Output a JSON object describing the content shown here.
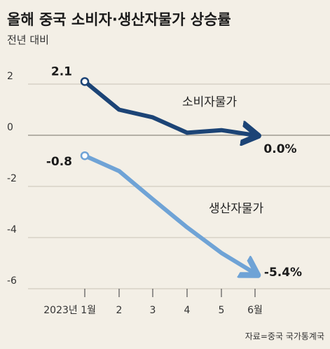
{
  "chart_data": {
    "type": "line",
    "title": "올해 중국 소비자·생산자물가 상승률",
    "subtitle": "전년 대비",
    "source": "자료=중국 국가통계국",
    "x": [
      "2023년 1월",
      "2",
      "3",
      "4",
      "5",
      "6월"
    ],
    "yticks": [
      2,
      0,
      -2,
      -4,
      -6
    ],
    "ylim": [
      -6.5,
      2.6
    ],
    "grid": true,
    "series": [
      {
        "name": "소비자물가",
        "values": [
          2.1,
          1.0,
          0.7,
          0.1,
          0.2,
          0.0
        ],
        "start_label": "2.1",
        "end_label": "0.0%",
        "color": "#1c4476"
      },
      {
        "name": "생산자물가",
        "values": [
          -0.8,
          -1.4,
          -2.5,
          -3.6,
          -4.6,
          -5.4
        ],
        "start_label": "-0.8",
        "end_label": "-5.4%",
        "color": "#6fa3d6"
      }
    ]
  }
}
